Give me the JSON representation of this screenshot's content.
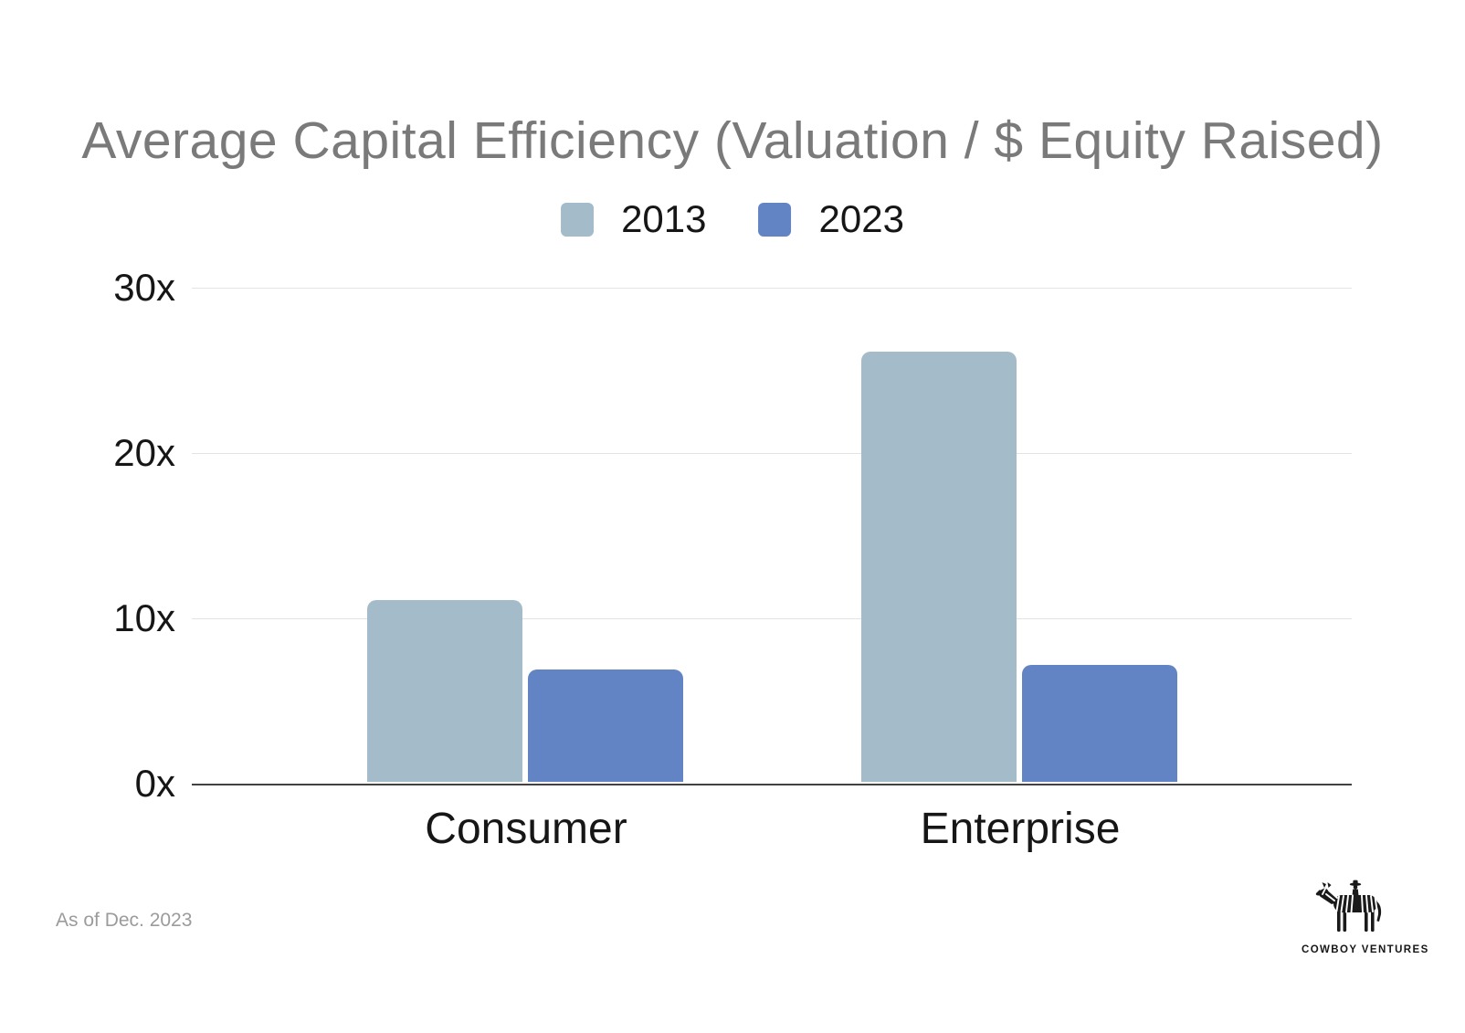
{
  "title": {
    "text": "Average Capital Efficiency (Valuation / $ Equity Raised)",
    "color": "#7a7a7a"
  },
  "legend": {
    "items": [
      {
        "label": "2013",
        "color": "#a4bbc9"
      },
      {
        "label": "2023",
        "color": "#6384c4"
      }
    ]
  },
  "chart_data": {
    "type": "bar",
    "title": "Average Capital Efficiency (Valuation / $ Equity Raised)",
    "categories": [
      "Consumer",
      "Enterprise"
    ],
    "series": [
      {
        "name": "2013",
        "color": "#a4bbc9",
        "values": [
          11,
          26
        ]
      },
      {
        "name": "2023",
        "color": "#6384c4",
        "values": [
          6.8,
          7.1
        ]
      }
    ],
    "xlabel": "",
    "ylabel": "",
    "ylim": [
      0,
      30
    ],
    "y_ticks": [
      "30x",
      "20x",
      "10x",
      "0x"
    ],
    "grid": true,
    "legend_position": "top",
    "axis_color": "#424242",
    "gridline_color": "#e3e3e3"
  },
  "footer": {
    "note": "As of Dec. 2023",
    "logo_text": "COWBOY VENTURES"
  }
}
